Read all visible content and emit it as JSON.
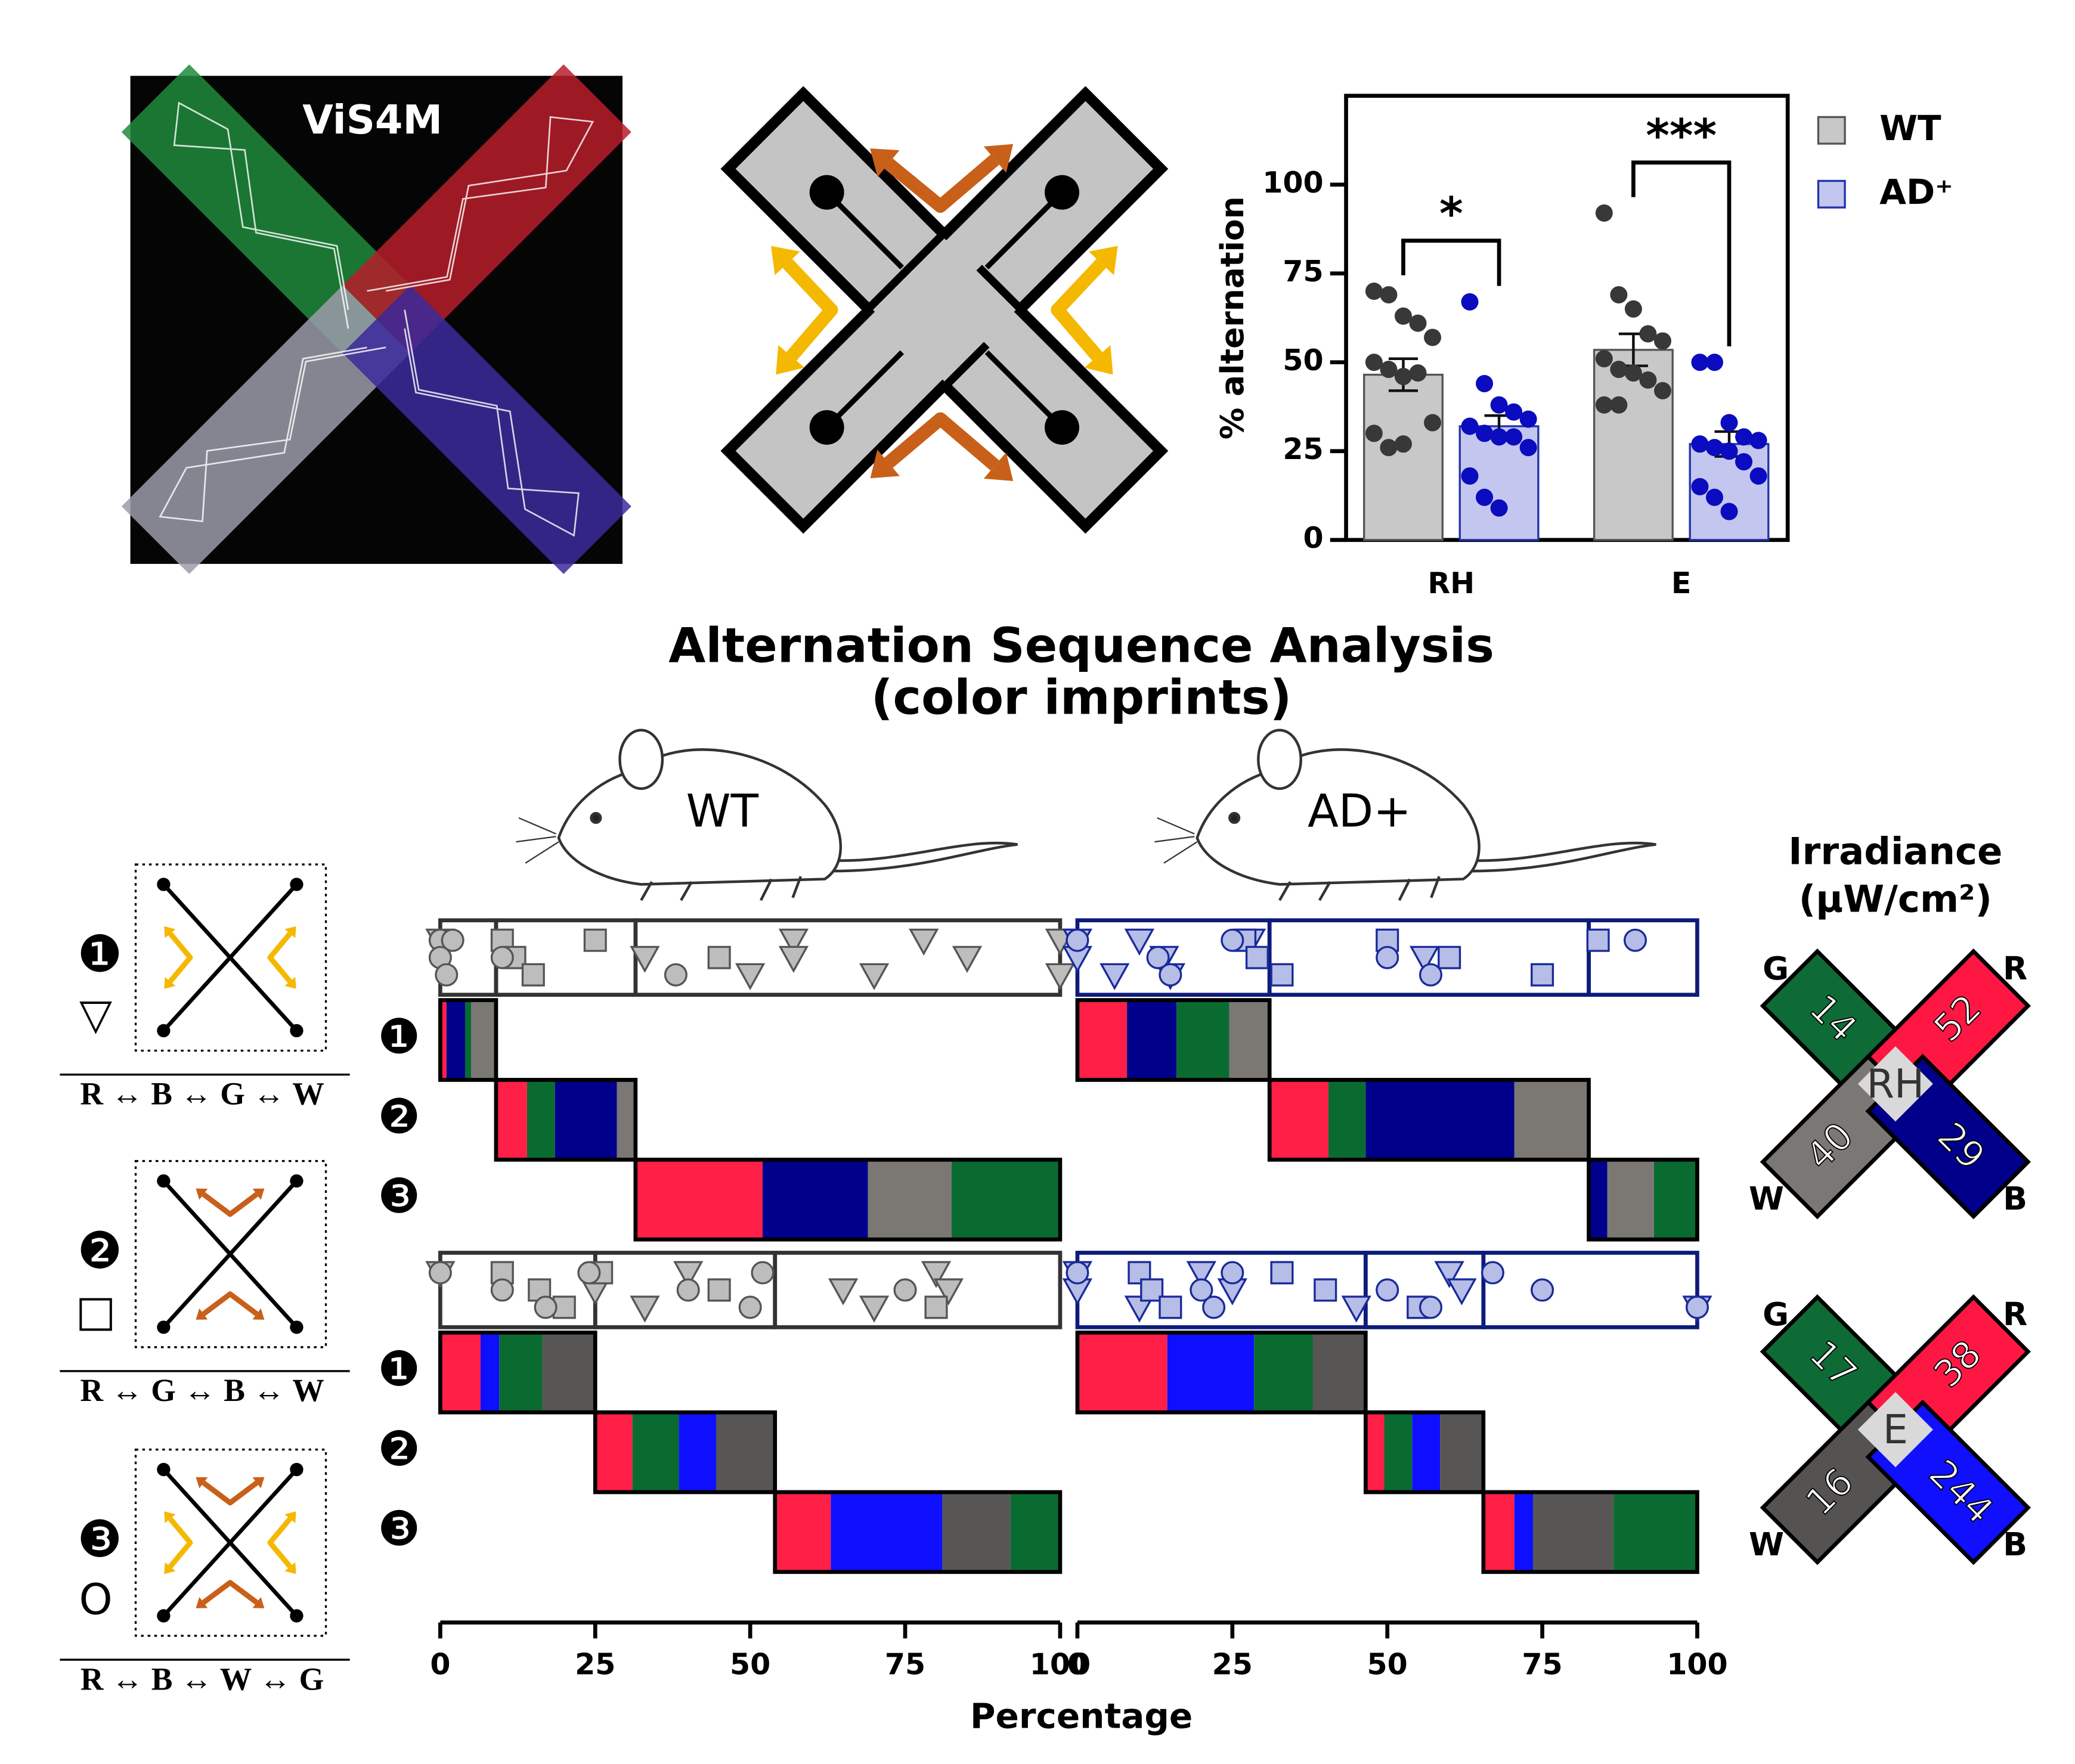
{
  "photo_label": "ViS4M",
  "chart_data": [
    {
      "type": "bar",
      "ylabel": "% alternation",
      "categories": [
        "RH",
        "E"
      ],
      "ylim": [
        0,
        125
      ],
      "yticks": [
        0,
        25,
        50,
        75,
        100
      ],
      "series": [
        {
          "name": "WT",
          "color": "#c8c8c8",
          "edge": "#555555",
          "point_color": "#383838",
          "values": [
            46.5,
            53.5
          ],
          "errors": [
            4.5,
            4.5
          ],
          "points": [
            [
              70,
              69,
              63,
              61,
              57,
              50,
              48,
              46,
              47,
              33,
              30,
              26,
              27
            ],
            [
              92,
              69,
              65,
              58,
              56,
              51,
              48,
              47,
              45,
              42,
              38,
              38
            ]
          ]
        },
        {
          "name": "AD⁺",
          "color": "#c3c6ee",
          "edge": "#2233aa",
          "point_color": "#0b0bbf",
          "values": [
            32,
            27
          ],
          "errors": [
            3,
            3.5
          ],
          "points": [
            [
              67,
              44,
              38,
              36,
              34,
              32,
              30,
              29,
              29,
              26,
              18,
              12,
              9
            ],
            [
              50,
              50,
              33,
              29,
              28,
              27,
              26,
              25,
              22,
              18,
              15,
              12,
              8
            ]
          ]
        }
      ],
      "significance": [
        "*",
        "***"
      ]
    },
    {
      "type": "sequence",
      "title": [
        "Alternation Sequence Analysis",
        "(color imprints)"
      ],
      "xlabel": "Percentage",
      "xlim": [
        0,
        100
      ],
      "xticks": [
        0,
        25,
        50,
        75,
        100
      ],
      "row_labels": [
        "❶",
        "❷",
        "❸"
      ],
      "groups": [
        {
          "name": "WT",
          "stroke": "#333333",
          "marker_fill": "#bdbdbd",
          "marker_stroke": "#555555"
        },
        {
          "name": "AD+",
          "stroke": "#0d1b7a",
          "marker_fill": "#b6bde6",
          "marker_stroke": "#1a2a9a"
        }
      ],
      "panels": [
        [
          {
            "rows": [
              [
                {
                  "color": "#ff1f47",
                  "value": 1
                },
                {
                  "color": "#00008b",
                  "value": 3
                },
                {
                  "color": "#0a6b30",
                  "value": 1
                },
                {
                  "color": "#7b7874",
                  "value": 4
                }
              ],
              [
                {
                  "color": "#ff1f47",
                  "value": 5
                },
                {
                  "color": "#0a6b30",
                  "value": 4.5
                },
                {
                  "color": "#00008b",
                  "value": 10
                },
                {
                  "color": "#7b7874",
                  "value": 3
                }
              ],
              [
                {
                  "color": "#ff1f47",
                  "value": 20.5
                },
                {
                  "color": "#00008b",
                  "value": 17
                },
                {
                  "color": "#7b7874",
                  "value": 13.5
                },
                {
                  "color": "#0a6b30",
                  "value": 17.5
                }
              ]
            ],
            "markers": {
              "triangle": [
                0,
                33,
                50,
                57,
                57,
                70,
                78,
                85,
                100,
                100
              ],
              "square": [
                10,
                12,
                15,
                25,
                45
              ],
              "circle": [
                0,
                0,
                1,
                2,
                10,
                38
              ]
            }
          },
          {
            "rows": [
              [
                {
                  "color": "#ff1f47",
                  "value": 8
                },
                {
                  "color": "#00008b",
                  "value": 8
                },
                {
                  "color": "#0a6b30",
                  "value": 8.5
                },
                {
                  "color": "#7b7874",
                  "value": 6.5
                }
              ],
              [
                {
                  "color": "#ff1f47",
                  "value": 9.5
                },
                {
                  "color": "#0a6b30",
                  "value": 6
                },
                {
                  "color": "#00008b",
                  "value": 24
                },
                {
                  "color": "#7b7874",
                  "value": 12
                }
              ],
              [
                {
                  "color": "#00008b",
                  "value": 3
                },
                {
                  "color": "#7b7874",
                  "value": 7.5
                },
                {
                  "color": "#0a6b30",
                  "value": 7
                }
              ]
            ],
            "markers": {
              "triangle": [
                0,
                0,
                6,
                10,
                14,
                15,
                28,
                56
              ],
              "square": [
                27,
                29,
                33,
                50,
                60,
                75,
                84
              ],
              "circle": [
                0,
                13,
                15,
                25,
                50,
                57,
                90
              ]
            }
          }
        ],
        [
          {
            "rows": [
              [
                {
                  "color": "#ff1f47",
                  "value": 6.5
                },
                {
                  "color": "#0f0fff",
                  "value": 3
                },
                {
                  "color": "#0a6b30",
                  "value": 7
                },
                {
                  "color": "#585654",
                  "value": 8.5
                }
              ],
              [
                {
                  "color": "#ff1f47",
                  "value": 6
                },
                {
                  "color": "#0a6b30",
                  "value": 7.5
                },
                {
                  "color": "#0f0fff",
                  "value": 6
                },
                {
                  "color": "#585654",
                  "value": 9.5
                }
              ],
              [
                {
                  "color": "#ff1f47",
                  "value": 9
                },
                {
                  "color": "#0f0fff",
                  "value": 18
                },
                {
                  "color": "#585654",
                  "value": 11
                },
                {
                  "color": "#0a6b30",
                  "value": 8
                }
              ]
            ],
            "markers": {
              "triangle": [
                0,
                25,
                33,
                40,
                65,
                70,
                80,
                82
              ],
              "square": [
                10,
                16,
                20,
                26,
                45,
                80
              ],
              "circle": [
                0,
                10,
                17,
                24,
                40,
                50,
                52,
                75
              ]
            }
          },
          {
            "rows": [
              [
                {
                  "color": "#ff1f47",
                  "value": 14.5
                },
                {
                  "color": "#0f0fff",
                  "value": 14
                },
                {
                  "color": "#0a6b30",
                  "value": 9.5
                },
                {
                  "color": "#585654",
                  "value": 8.5
                }
              ],
              [
                {
                  "color": "#ff1f47",
                  "value": 3
                },
                {
                  "color": "#0a6b30",
                  "value": 4.5
                },
                {
                  "color": "#0f0fff",
                  "value": 4.5
                },
                {
                  "color": "#585654",
                  "value": 7
                }
              ],
              [
                {
                  "color": "#ff1f47",
                  "value": 5
                },
                {
                  "color": "#0f0fff",
                  "value": 3
                },
                {
                  "color": "#585654",
                  "value": 13
                },
                {
                  "color": "#0a6b30",
                  "value": 13.5
                }
              ]
            ],
            "markers": {
              "triangle": [
                0,
                0,
                10,
                20,
                25,
                45,
                60,
                62,
                100
              ],
              "square": [
                10,
                12,
                15,
                33,
                40,
                55
              ],
              "circle": [
                0,
                20,
                22,
                25,
                50,
                57,
                67,
                75,
                100
              ]
            }
          }
        ]
      ]
    }
  ],
  "schemes": [
    {
      "label": "❶",
      "symbol": "▽",
      "order": "R ↔ B ↔ G ↔ W"
    },
    {
      "label": "❷",
      "symbol": "□",
      "order": "R ↔ G ↔ B ↔ W"
    },
    {
      "label": "❸",
      "symbol": "O",
      "order": "R ↔ B ↔ W ↔ G"
    }
  ],
  "irradiance": {
    "title": "Irradiance",
    "unit": "(μW/cm²)",
    "panels": [
      {
        "center": "RH",
        "arms": [
          {
            "letter": "G",
            "value": 14,
            "color": "#0e6b35"
          },
          {
            "letter": "R",
            "value": 52,
            "color": "#ff1744"
          },
          {
            "letter": "W",
            "value": 40,
            "color": "#7a7774"
          },
          {
            "letter": "B",
            "value": 29,
            "color": "#00008a"
          }
        ]
      },
      {
        "center": "E",
        "arms": [
          {
            "letter": "G",
            "value": 17,
            "color": "#0e6b35"
          },
          {
            "letter": "R",
            "value": 38,
            "color": "#ff1744"
          },
          {
            "letter": "W",
            "value": 16,
            "color": "#555352"
          },
          {
            "letter": "B",
            "value": 244,
            "color": "#1010ff"
          }
        ]
      }
    ]
  }
}
